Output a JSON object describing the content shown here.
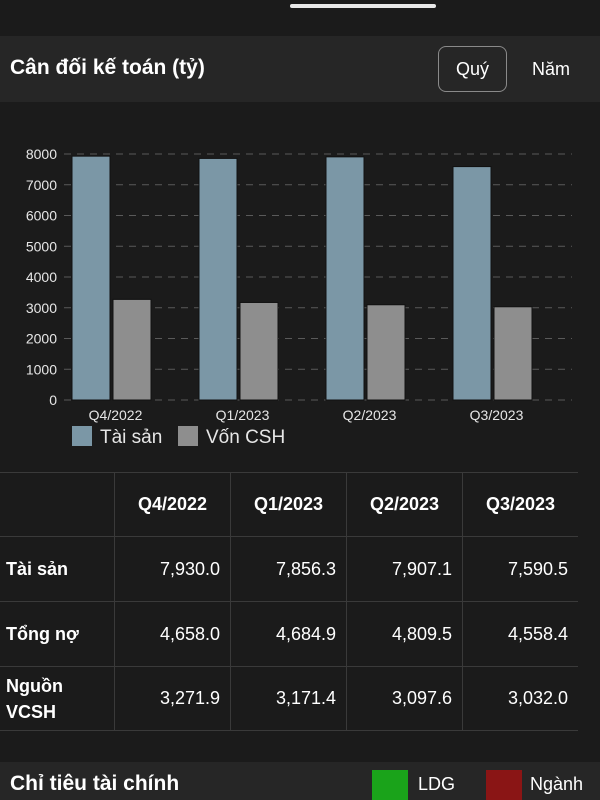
{
  "header": {
    "title": "Cân đối kế toán (tỷ)",
    "period_quarter": "Quý",
    "period_year": "Năm"
  },
  "chart_data": {
    "type": "bar",
    "categories": [
      "Q4/2022",
      "Q1/2023",
      "Q2/2023",
      "Q3/2023"
    ],
    "series": [
      {
        "name": "Tài sản",
        "values": [
          7930.0,
          7856.3,
          7907.1,
          7590.5
        ],
        "color": "#7b97a6"
      },
      {
        "name": "Vốn CSH",
        "values": [
          3271.9,
          3171.4,
          3097.6,
          3032.0
        ],
        "color": "#8e8e8e"
      }
    ],
    "yticks": [
      0,
      1000,
      2000,
      3000,
      4000,
      5000,
      6000,
      7000,
      8000
    ],
    "ylim": [
      0,
      8000
    ],
    "grid": true,
    "legend_position": "bottom-left"
  },
  "table": {
    "columns": [
      "Q4/2022",
      "Q1/2023",
      "Q2/2023",
      "Q3/2023"
    ],
    "rows": [
      {
        "label": "Tài sản",
        "values": [
          "7,930.0",
          "7,856.3",
          "7,907.1",
          "7,590.5"
        ]
      },
      {
        "label": "Tổng nợ",
        "values": [
          "4,658.0",
          "4,684.9",
          "4,809.5",
          "4,558.4"
        ]
      },
      {
        "label": "Nguồn VCSH",
        "values": [
          "3,271.9",
          "3,171.4",
          "3,097.6",
          "3,032.0"
        ]
      }
    ]
  },
  "bottom": {
    "title": "Chỉ tiêu tài chính",
    "legend": [
      {
        "label": "LDG",
        "color": "#1aa31a"
      },
      {
        "label": "Ngành",
        "color": "#8a1515"
      }
    ]
  }
}
